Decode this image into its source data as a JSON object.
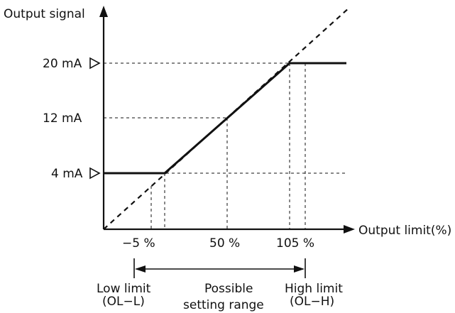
{
  "axes": {
    "y_label": "Output signal",
    "x_label": "Output limit(%)"
  },
  "y_ticks": [
    {
      "value": 20,
      "label": "20 mA"
    },
    {
      "value": 12,
      "label": "12 mA"
    },
    {
      "value": 4,
      "label": "4 mA"
    }
  ],
  "x_ticks": [
    {
      "value": -5,
      "label": "−5 %"
    },
    {
      "value": 50,
      "label": "50 %"
    },
    {
      "value": 105,
      "label": "105 %"
    }
  ],
  "range": {
    "low_line1": "Low limit",
    "low_line2": "(OL−L)",
    "mid_line1": "Possible",
    "mid_line2": "setting range",
    "high_line1": "High limit",
    "high_line2": "(OL−H)"
  }
}
